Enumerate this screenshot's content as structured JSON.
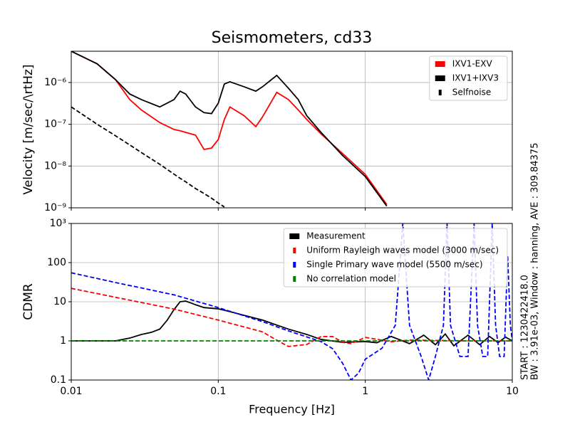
{
  "chart_data": [
    {
      "type": "line",
      "title": "Seismometers, cd33",
      "ylabel": "Velocity [m/sec/\\rtHz]",
      "xlog": true,
      "ylog": true,
      "grid": true,
      "legend": "upper right",
      "xlim": [
        0.01,
        10
      ],
      "xticks": [
        0.01,
        0.1,
        1,
        10
      ],
      "ylim": [
        1e-09,
        5.6e-06
      ],
      "yticks": [
        {
          "value": 1e-09,
          "label": "10⁻⁹"
        },
        {
          "value": 1e-08,
          "label": "10⁻⁸"
        },
        {
          "value": 1e-07,
          "label": "10⁻⁷"
        },
        {
          "value": 1e-06,
          "label": "10⁻⁶"
        }
      ],
      "x": [
        0.01,
        0.015,
        0.02,
        0.025,
        0.03,
        0.04,
        0.05,
        0.055,
        0.06,
        0.07,
        0.08,
        0.09,
        0.1,
        0.11,
        0.12,
        0.15,
        0.18,
        0.2,
        0.25,
        0.3,
        0.35,
        0.4,
        0.5,
        0.7,
        1.0,
        1.4
      ],
      "series": [
        {
          "name": "IXV1-EXV",
          "color": "#ff0000",
          "values": [
            5.6e-06,
            2.8e-06,
            1.17e-06,
            3.9e-07,
            2.2e-07,
            1.1e-07,
            7.5e-08,
            7e-08,
            6.4e-08,
            5.5e-08,
            2.5e-08,
            2.7e-08,
            4.3e-08,
            1.3e-07,
            2.6e-07,
            1.6e-07,
            8.8e-08,
            1.5e-07,
            5.8e-07,
            3.9e-07,
            2.2e-07,
            1.3e-07,
            5.9e-08,
            2e-08,
            6.3e-09,
            1.2e-09
          ]
        },
        {
          "name": "IXV1+IXV3",
          "color": "#000000",
          "values": [
            5.6e-06,
            2.8e-06,
            1.17e-06,
            5.3e-07,
            3.9e-07,
            2.6e-07,
            3.9e-07,
            6.2e-07,
            5.3e-07,
            2.6e-07,
            1.9e-07,
            1.8e-07,
            3.2e-07,
            9.2e-07,
            1.04e-06,
            7.9e-07,
            6.2e-07,
            7.9e-07,
            1.48e-06,
            7.3e-07,
            3.9e-07,
            1.6e-07,
            6.4e-08,
            1.8e-08,
            5.6e-09,
            1.1e-09
          ]
        },
        {
          "name": "Selfnoise",
          "color": "#000000",
          "dash": true,
          "values": [
            2.6e-07,
            1e-07,
            5.3e-08,
            3.2e-08,
            2.1e-08,
            1.1e-08,
            6.4e-09,
            5.1e-09,
            4.2e-09,
            2.9e-09,
            2.2e-09,
            1.7e-09,
            1.3e-09,
            1.05e-09,
            null,
            null,
            null,
            null,
            null,
            null,
            null,
            null,
            null,
            null,
            null,
            null
          ]
        }
      ]
    },
    {
      "type": "line",
      "ylabel": "CDMR",
      "xlabel": "Frequency [Hz]",
      "xlog": true,
      "ylog": true,
      "grid": true,
      "legend": "upper right",
      "xlim": [
        0.01,
        10
      ],
      "xticks": [
        0.01,
        0.1,
        1,
        10
      ],
      "ylim": [
        0.1,
        1000
      ],
      "yticks": [
        0.1,
        1,
        10,
        100,
        {
          "value": 1000,
          "label": "10³"
        }
      ],
      "annotations": [
        "START : 1230422418.0",
        "BW : 3.91e-03, Window : hanning, AVE : 309.84375"
      ],
      "series": [
        {
          "name": "Measurement",
          "color": "#000000",
          "x": [
            0.01,
            0.02,
            0.025,
            0.03,
            0.035,
            0.04,
            0.045,
            0.05,
            0.055,
            0.06,
            0.07,
            0.08,
            0.1,
            0.12,
            0.15,
            0.2,
            0.3,
            0.4,
            0.5,
            0.7,
            1.0,
            1.2,
            1.5,
            2.0,
            2.5,
            3.0,
            3.5,
            4.0,
            5.0,
            6.0,
            7.0,
            8.0,
            9.0,
            10
          ],
          "values": [
            1,
            1,
            1.18,
            1.46,
            1.65,
            2.0,
            3.4,
            6.3,
            10,
            10.4,
            8.4,
            7.1,
            6.6,
            5.6,
            4.5,
            3.4,
            2.0,
            1.46,
            1.09,
            0.92,
            0.96,
            0.9,
            1.3,
            0.85,
            1.4,
            0.8,
            1.5,
            0.75,
            1.4,
            0.8,
            1.3,
            0.9,
            1.25,
            1.0
          ]
        },
        {
          "name": "Uniform Rayleigh waves model (3000 m/sec)",
          "color": "#ff0000",
          "dash": true,
          "x": [
            0.01,
            0.02,
            0.05,
            0.1,
            0.2,
            0.25,
            0.3,
            0.4,
            0.5,
            0.6,
            0.7,
            0.8,
            1.0,
            1.5,
            2.0,
            5.0,
            10
          ],
          "values": [
            22,
            13,
            6.5,
            3.4,
            1.7,
            1.04,
            0.72,
            0.81,
            1.29,
            1.29,
            0.92,
            0.85,
            1.23,
            0.95,
            1.05,
            1,
            1
          ]
        },
        {
          "name": "Single Primary wave model (5500 m/sec)",
          "color": "#0000ff",
          "dash": true,
          "x": [
            0.01,
            0.02,
            0.05,
            0.1,
            0.2,
            0.3,
            0.5,
            0.6,
            0.7,
            0.8,
            0.9,
            1.0,
            1.3,
            1.6,
            1.8,
            2.0,
            2.4,
            2.7,
            3.0,
            3.4,
            3.6,
            3.8,
            4.4,
            5.0,
            5.5,
            5.8,
            6.3,
            6.8,
            7.3,
            7.7,
            8.2,
            8.8,
            9.3,
            9.7,
            10
          ],
          "values": [
            55,
            31,
            15,
            7.1,
            3.1,
            1.8,
            0.96,
            0.63,
            0.27,
            0.1,
            0.15,
            0.34,
            0.65,
            2.5,
            1000,
            2.5,
            0.4,
            0.1,
            0.4,
            2.5,
            1000,
            2.5,
            0.4,
            0.4,
            1000,
            2.5,
            0.4,
            0.4,
            1000,
            2.5,
            0.4,
            0.4,
            150,
            2.5,
            1
          ]
        },
        {
          "name": "No correlation model",
          "color": "#008000",
          "dash": true,
          "x": [
            0.01,
            10
          ],
          "values": [
            1,
            1
          ]
        }
      ]
    }
  ]
}
